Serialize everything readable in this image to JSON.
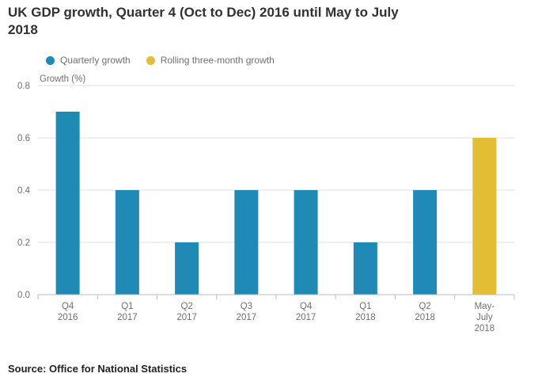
{
  "title": "UK GDP growth, Quarter 4 (Oct to Dec) 2016 until May to July 2018",
  "source": "Source: Office for National Statistics",
  "legend": {
    "quarterly": "Quarterly growth",
    "rolling": "Rolling three-month growth"
  },
  "colors": {
    "quarterly": "#1f8ab5",
    "rolling": "#e3bd33",
    "grid": "#e2e2e3",
    "axis": "#bebebe"
  },
  "chart_data": {
    "type": "bar",
    "title": "UK GDP growth, Quarter 4 (Oct to Dec) 2016 until May to July 2018",
    "xlabel": "",
    "ylabel": "Growth (%)",
    "ylim": [
      0,
      0.8
    ],
    "yticks": [
      "0.0",
      "0.2",
      "0.4",
      "0.6",
      "0.8"
    ],
    "categories": [
      [
        "Q4",
        "2016"
      ],
      [
        "Q1",
        "2017"
      ],
      [
        "Q2",
        "2017"
      ],
      [
        "Q3",
        "2017"
      ],
      [
        "Q4",
        "2017"
      ],
      [
        "Q1",
        "2018"
      ],
      [
        "Q2",
        "2018"
      ],
      [
        "May-",
        "July",
        "2018"
      ]
    ],
    "series": [
      {
        "name": "Quarterly growth",
        "values": [
          0.7,
          0.4,
          0.2,
          0.4,
          0.4,
          0.2,
          0.4,
          null
        ]
      },
      {
        "name": "Rolling three-month growth",
        "values": [
          null,
          null,
          null,
          null,
          null,
          null,
          null,
          0.6
        ]
      }
    ]
  }
}
